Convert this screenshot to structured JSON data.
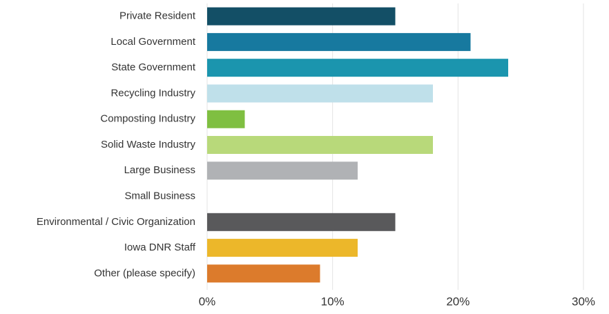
{
  "chart_data": {
    "type": "barh",
    "categories": [
      "Private Resident",
      "Local Government",
      "State Government",
      "Recycling Industry",
      "Composting Industry",
      "Solid Waste Industry",
      "Large Business",
      "Small Business",
      "Environmental / Civic Organization",
      "Iowa DNR Staff",
      "Other (please specify)"
    ],
    "values": [
      15,
      21,
      24,
      18,
      3,
      18,
      12,
      0,
      15,
      12,
      9
    ],
    "colors": [
      "#134f66",
      "#17799f",
      "#1b95ae",
      "#bfe0ea",
      "#7fbf41",
      "#b8d97a",
      "#b0b2b5",
      "#9ab8d0",
      "#59595b",
      "#ecb72a",
      "#dc7b2c"
    ],
    "xlim": [
      0,
      30
    ],
    "xticks": [
      {
        "value": 0,
        "label": "0%"
      },
      {
        "value": 10,
        "label": "10%"
      },
      {
        "value": 20,
        "label": "20%"
      },
      {
        "value": 30,
        "label": "30%"
      }
    ],
    "grid": true
  }
}
